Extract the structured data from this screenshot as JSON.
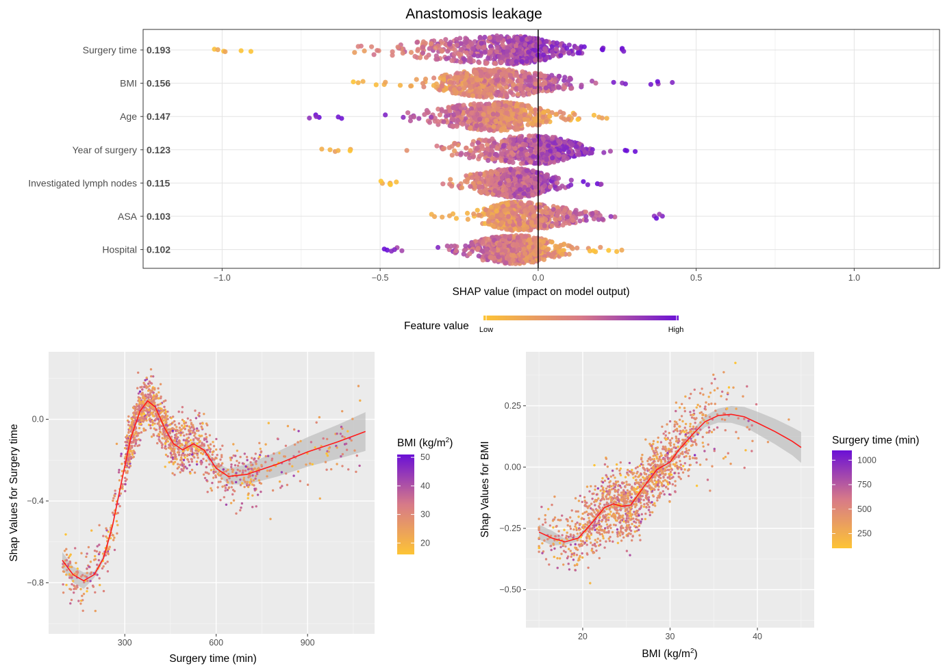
{
  "colors": {
    "low": "#fdc435",
    "mid": "#d77a88",
    "high": "#6a10d6",
    "smooth": "#ff1a1a",
    "ribbon": "#bdbdbd",
    "panel": "#ebebeb"
  },
  "chart_data": [
    {
      "type": "scatter",
      "subtype": "shap-beeswarm",
      "title": "Anastomosis leakage",
      "xlabel": "SHAP value (impact on model output)",
      "xlim": [
        -1.25,
        1.27
      ],
      "xticks": [
        -1.0,
        -0.5,
        0.0,
        0.5,
        1.0
      ],
      "xtick_labels": [
        "−1.0",
        "−0.5",
        "0.0",
        "0.5",
        "1.0"
      ],
      "features": [
        {
          "name": "Surgery time",
          "importance": "0.193",
          "min": -1.05,
          "max": 0.3,
          "center": -0.08,
          "color_trend": "low-left"
        },
        {
          "name": "BMI",
          "importance": "0.156",
          "min": -0.6,
          "max": 0.44,
          "center": -0.15,
          "color_trend": "low-left"
        },
        {
          "name": "Age",
          "importance": "0.147",
          "min": -0.73,
          "max": 0.27,
          "center": -0.12,
          "color_trend": "high-left"
        },
        {
          "name": "Year of surgery",
          "importance": "0.123",
          "min": -0.71,
          "max": 0.31,
          "center": 0.0,
          "color_trend": "low-left"
        },
        {
          "name": "Investigated lymph nodes",
          "importance": "0.115",
          "min": -0.53,
          "max": 0.23,
          "center": -0.07,
          "color_trend": "low-left"
        },
        {
          "name": "ASA",
          "importance": "0.103",
          "min": -0.34,
          "max": 0.43,
          "center": -0.07,
          "color_trend": "low-left"
        },
        {
          "name": "Hospital",
          "importance": "0.102",
          "min": -0.5,
          "max": 0.27,
          "center": -0.07,
          "color_trend": "high-left"
        }
      ],
      "legend": {
        "title": "Feature value",
        "low": "Low",
        "high": "High",
        "position": "bottom"
      }
    },
    {
      "type": "scatter",
      "subtype": "dependence",
      "xlabel": "Surgery time (min)",
      "ylabel": "Shap Values for Surgery time",
      "xlim": [
        50,
        1120
      ],
      "ylim": [
        -1.05,
        0.33
      ],
      "xticks": [
        300,
        600,
        900
      ],
      "yticks": [
        0.0,
        -0.4,
        -0.8
      ],
      "ytick_labels": [
        "0.0",
        "−0.4",
        "−0.8"
      ],
      "smooth": [
        [
          95,
          -0.69
        ],
        [
          130,
          -0.76
        ],
        [
          165,
          -0.79
        ],
        [
          200,
          -0.76
        ],
        [
          230,
          -0.68
        ],
        [
          260,
          -0.52
        ],
        [
          290,
          -0.3
        ],
        [
          320,
          -0.09
        ],
        [
          350,
          0.04
        ],
        [
          375,
          0.09
        ],
        [
          400,
          0.06
        ],
        [
          430,
          -0.04
        ],
        [
          460,
          -0.12
        ],
        [
          490,
          -0.15
        ],
        [
          525,
          -0.12
        ],
        [
          560,
          -0.15
        ],
        [
          600,
          -0.24
        ],
        [
          640,
          -0.28
        ],
        [
          700,
          -0.27
        ],
        [
          800,
          -0.22
        ],
        [
          900,
          -0.16
        ],
        [
          1000,
          -0.11
        ],
        [
          1090,
          -0.06
        ]
      ],
      "colorbar": {
        "title": "BMI (kg/m²)",
        "title_main": "BMI (kg/m",
        "title_sup": "2",
        "title_end": ")",
        "ticks": [
          50,
          40,
          30,
          20
        ],
        "range": [
          16,
          51
        ]
      }
    },
    {
      "type": "scatter",
      "subtype": "dependence",
      "xlabel": "BMI (kg/m²)",
      "xlabel_main": "BMI (kg/m",
      "xlabel_sup": "2",
      "xlabel_end": ")",
      "ylabel": "Shap Values for BMI",
      "xlim": [
        13.5,
        46.5
      ],
      "ylim": [
        -0.655,
        0.47
      ],
      "xticks": [
        20,
        30,
        40
      ],
      "yticks": [
        0.25,
        0.0,
        -0.25,
        -0.5
      ],
      "ytick_labels": [
        "0.25",
        "0.00",
        "−0.25",
        "−0.50"
      ],
      "smooth": [
        [
          15,
          -0.265
        ],
        [
          16.5,
          -0.29
        ],
        [
          18,
          -0.305
        ],
        [
          19.5,
          -0.29
        ],
        [
          21,
          -0.23
        ],
        [
          22.5,
          -0.165
        ],
        [
          23.5,
          -0.15
        ],
        [
          24.5,
          -0.16
        ],
        [
          25.5,
          -0.155
        ],
        [
          27,
          -0.08
        ],
        [
          28.5,
          -0.01
        ],
        [
          30,
          0.02
        ],
        [
          31,
          0.07
        ],
        [
          32.5,
          0.13
        ],
        [
          34,
          0.185
        ],
        [
          35.5,
          0.21
        ],
        [
          37,
          0.215
        ],
        [
          38.5,
          0.205
        ],
        [
          40,
          0.18
        ],
        [
          42,
          0.145
        ],
        [
          44,
          0.105
        ],
        [
          45,
          0.08
        ]
      ],
      "colorbar": {
        "title": "Surgery time (min)",
        "ticks": [
          1000,
          750,
          500,
          250
        ],
        "range": [
          100,
          1100
        ]
      }
    }
  ]
}
